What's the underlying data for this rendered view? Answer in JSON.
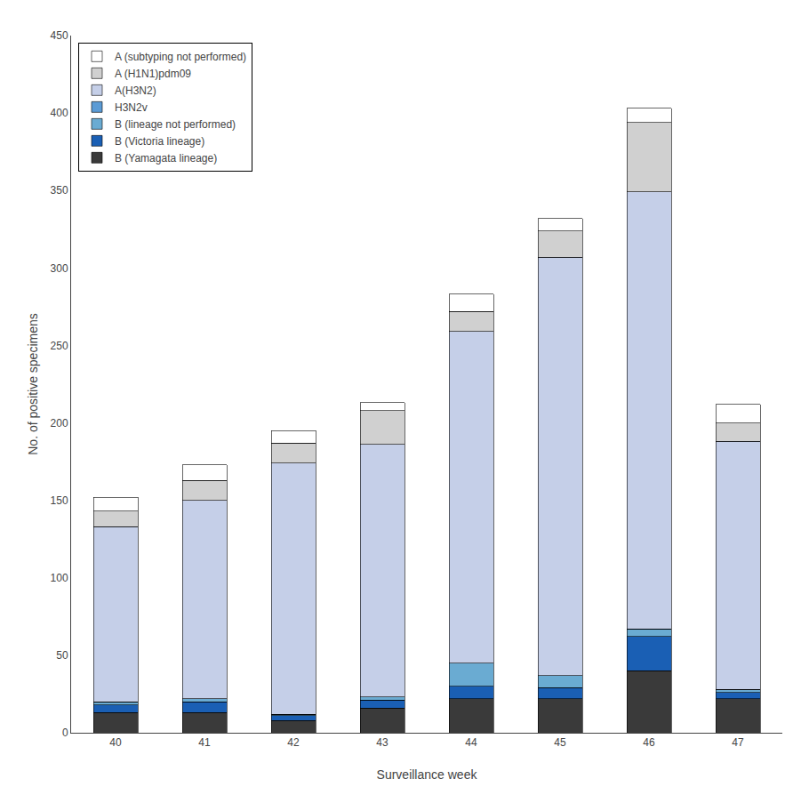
{
  "chart_data": {
    "type": "bar",
    "stacked": true,
    "categories": [
      "40",
      "41",
      "42",
      "43",
      "44",
      "45",
      "46",
      "47"
    ],
    "series": [
      {
        "name": "B (Yamagata lineage)",
        "color": "#3a3a3a",
        "values": [
          13,
          13,
          8,
          16,
          22,
          22,
          40,
          22
        ]
      },
      {
        "name": "B (Victoria lineage)",
        "color": "#1a5fb4",
        "values": [
          5,
          7,
          3,
          5,
          8,
          7,
          22,
          4
        ]
      },
      {
        "name": "B (lineage not performed)",
        "color": "#6aabd2",
        "values": [
          2,
          2,
          1,
          2,
          15,
          8,
          5,
          2
        ]
      },
      {
        "name": "H3N2v",
        "color": "#5b9bd5",
        "values": [
          0,
          0,
          0,
          0,
          0,
          0,
          0,
          0
        ]
      },
      {
        "name": "A(H3N2)",
        "color": "#c5cfe8",
        "values": [
          113,
          128,
          162,
          163,
          214,
          270,
          282,
          160
        ]
      },
      {
        "name": "A (H1N1)pdm09",
        "color": "#d0d0d0",
        "values": [
          10,
          13,
          13,
          22,
          13,
          17,
          45,
          12
        ]
      },
      {
        "name": "A (subtyping not performed)",
        "color": "#ffffff",
        "values": [
          9,
          10,
          8,
          5,
          11,
          8,
          9,
          12
        ]
      }
    ],
    "xlabel": "Surveillance week",
    "ylabel": "No. of positive specimens",
    "ylim": [
      0,
      450
    ],
    "yticks": [
      0,
      50,
      100,
      150,
      200,
      250,
      300,
      350,
      400,
      450
    ],
    "grid": false,
    "legend": "upper left"
  }
}
